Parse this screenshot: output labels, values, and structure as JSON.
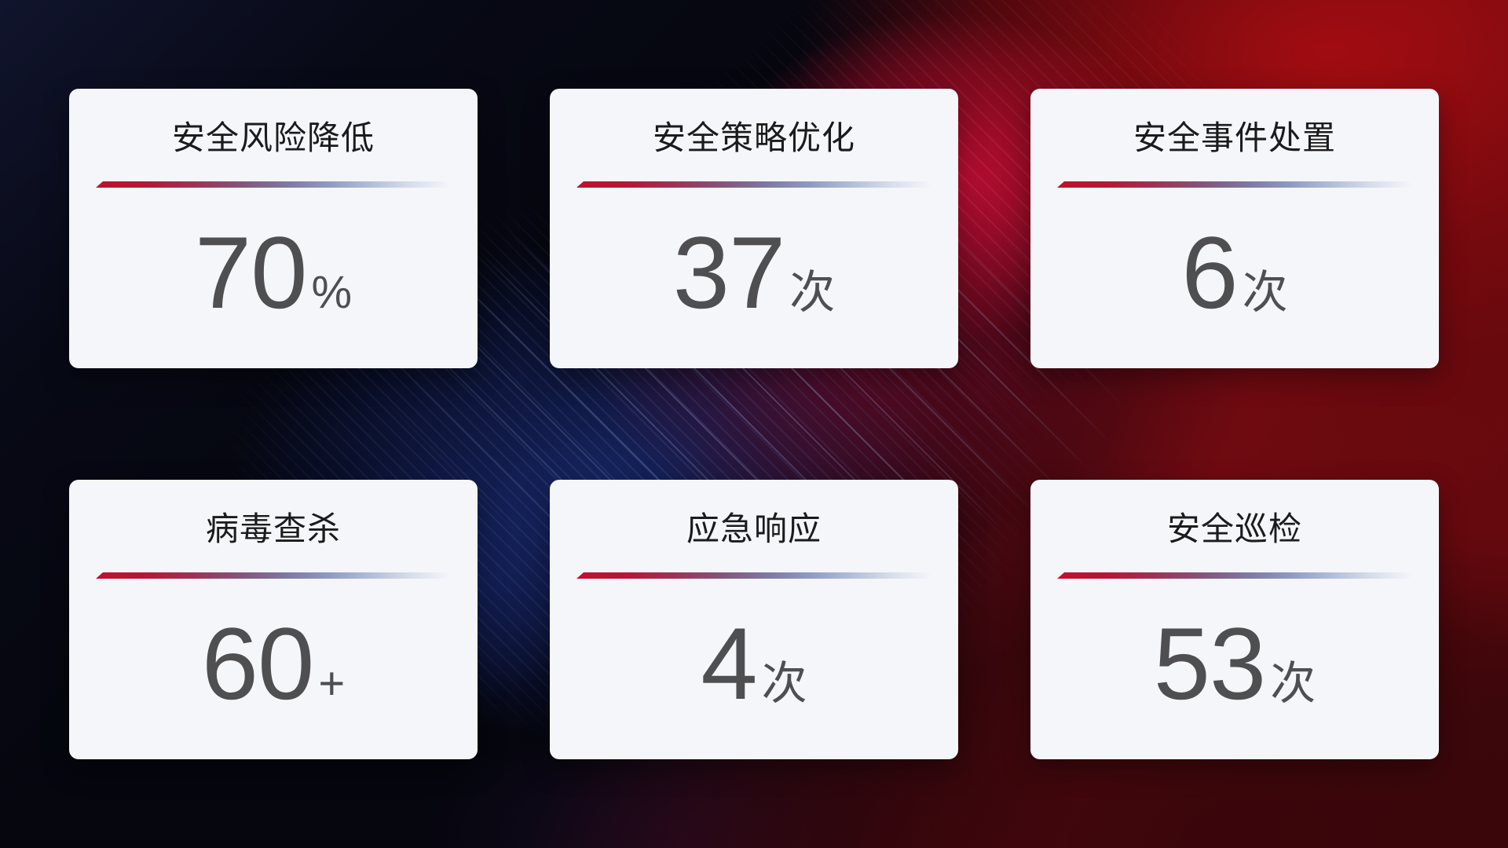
{
  "cards": [
    {
      "title": "安全风险降低",
      "value": "70",
      "unit": "%"
    },
    {
      "title": "安全策略优化",
      "value": "37",
      "unit": "次"
    },
    {
      "title": "安全事件处置",
      "value": "6",
      "unit": "次"
    },
    {
      "title": "病毒查杀",
      "value": "60",
      "unit": "+"
    },
    {
      "title": "应急响应",
      "value": "4",
      "unit": "次"
    },
    {
      "title": "安全巡检",
      "value": "53",
      "unit": "次"
    }
  ],
  "colors": {
    "card_background": "#f5f6fa",
    "title_text": "#1b1b1d",
    "value_text": "#4f4f52",
    "divider_gradient_start": "#c30e2d",
    "divider_gradient_mid": "#8f9bc4",
    "divider_gradient_end": "#e9edf5",
    "background_base": "#05060e",
    "background_red": "#a30d11",
    "background_blue": "#1a2a6e"
  }
}
